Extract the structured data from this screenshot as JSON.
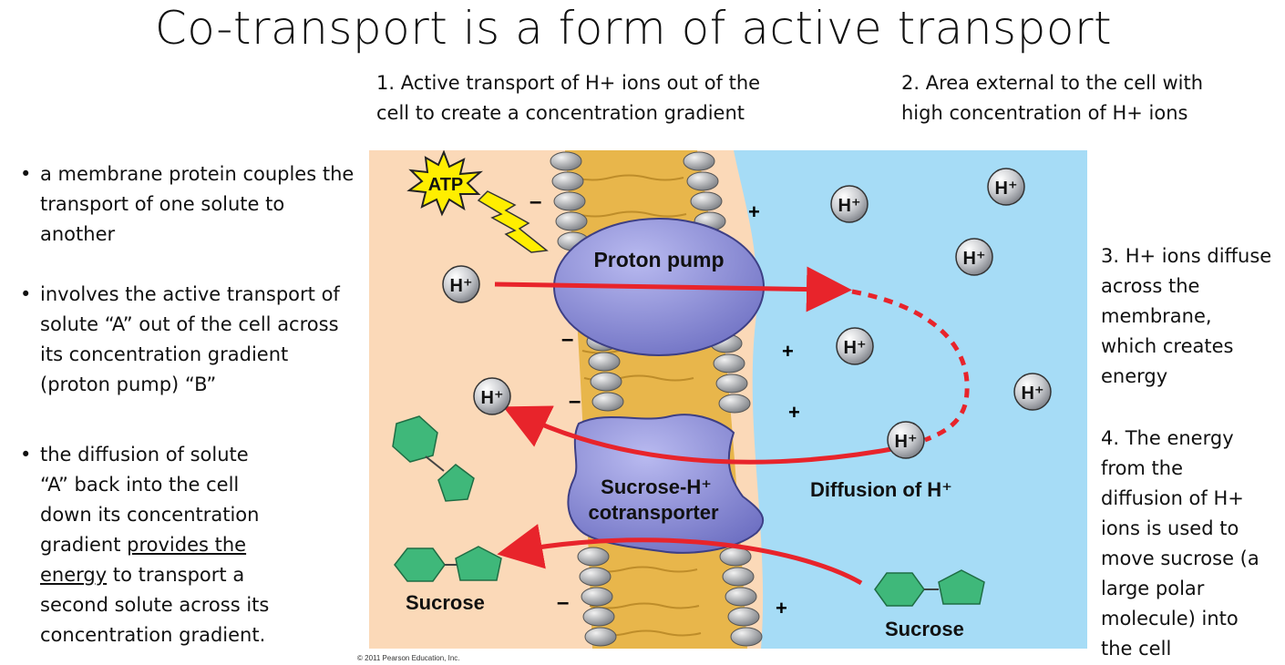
{
  "title": "Co-transport is a form of active transport",
  "notes": {
    "n1": [
      "1. Active transport of H+ ions out of the",
      "cell to create a concentration gradient"
    ],
    "n2": [
      "2. Area external to the cell with",
      "high concentration of H+ ions"
    ],
    "n3": [
      "3. H+ ions diffuse",
      "across the",
      "membrane,",
      "which creates",
      "energy"
    ],
    "n4": [
      "4. The energy",
      "from the",
      "diffusion of H+",
      "ions is used to",
      "move sucrose (a",
      "large polar",
      "molecule) into",
      "the cell"
    ]
  },
  "bullets": {
    "b1": [
      "a membrane protein couples the",
      "transport of one solute to",
      "another"
    ],
    "b2": [
      "involves the active transport of",
      "solute “A” out of the cell across",
      "its concentration gradient",
      "(proton pump) “B”"
    ],
    "b3": {
      "l1": "the diffusion of solute",
      "l2": "“A” back into the cell",
      "l3": "down its concentration",
      "l4a": "gradient ",
      "l4u": "provides the",
      "l5u": "energy",
      "l5b": " to transport a",
      "l6": "second solute across its",
      "l7": "concentration gradient."
    }
  },
  "diagram": {
    "atp": "ATP",
    "proton_pump": "Proton pump",
    "cotransporter": [
      "Sucrose-H⁺",
      "cotransporter"
    ],
    "diffusion": "Diffusion of H⁺",
    "ion": "H⁺",
    "sucrose_left": "Sucrose",
    "sucrose_right": "Sucrose",
    "minus": "–",
    "plus": "+",
    "colors": {
      "inside": "#fbd9b8",
      "outside": "#a6dcf6",
      "protein": "#8e8fd6",
      "arrow": "#e8242b",
      "sucrose": "#3fb87a",
      "atp": "#ffee00"
    }
  },
  "copyright": "© 2011 Pearson Education, Inc."
}
